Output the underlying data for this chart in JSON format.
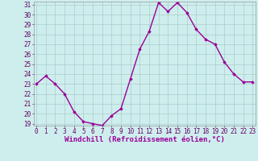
{
  "x": [
    0,
    1,
    2,
    3,
    4,
    5,
    6,
    7,
    8,
    9,
    10,
    11,
    12,
    13,
    14,
    15,
    16,
    17,
    18,
    19,
    20,
    21,
    22,
    23
  ],
  "y": [
    23,
    23.8,
    23,
    22,
    20.2,
    19.2,
    19.0,
    18.8,
    19.8,
    20.5,
    23.5,
    26.5,
    28.3,
    31.2,
    30.3,
    31.2,
    30.2,
    28.5,
    27.5,
    27.0,
    25.2,
    24.0,
    23.2,
    23.2
  ],
  "line_color": "#990099",
  "marker": "D",
  "markersize": 1.8,
  "bg_color": "#ceeeed",
  "grid_color": "#aacccc",
  "xlabel": "Windchill (Refroidissement éolien,°C)",
  "ylim_min": 19,
  "ylim_max": 31,
  "xlim_min": 0,
  "xlim_max": 23,
  "yticks": [
    19,
    20,
    21,
    22,
    23,
    24,
    25,
    26,
    27,
    28,
    29,
    30,
    31
  ],
  "xticks": [
    0,
    1,
    2,
    3,
    4,
    5,
    6,
    7,
    8,
    9,
    10,
    11,
    12,
    13,
    14,
    15,
    16,
    17,
    18,
    19,
    20,
    21,
    22,
    23
  ],
  "tick_fontsize": 5.5,
  "xlabel_fontsize": 6.5,
  "linewidth": 1.0
}
